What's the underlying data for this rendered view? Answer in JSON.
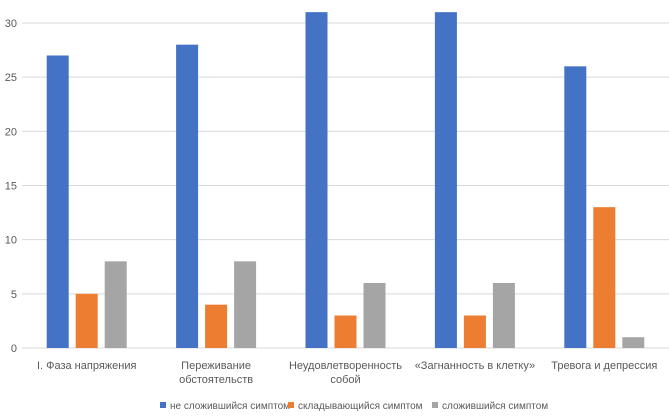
{
  "chart_data": {
    "type": "bar",
    "title": "",
    "xlabel": "",
    "ylabel": "",
    "ylim": [
      0,
      30
    ],
    "yticks": [
      0,
      5,
      10,
      15,
      20,
      25,
      30
    ],
    "grid": true,
    "legend_position": "bottom",
    "categories": [
      [
        "I. Фаза напряжения"
      ],
      [
        "Переживание",
        "обстоятельств"
      ],
      [
        "Неудовлетворенность",
        "собой"
      ],
      [
        "«Загнанность в клетку»"
      ],
      [
        "Тревога и депрессия"
      ]
    ],
    "series": [
      {
        "name": "не сложившийся симптом",
        "color": "#4472c4",
        "values": [
          27,
          28,
          31,
          31,
          26
        ]
      },
      {
        "name": "складывающийся симптом",
        "color": "#ed7d31",
        "values": [
          5,
          4,
          3,
          3,
          13
        ]
      },
      {
        "name": "сложившийся симптом",
        "color": "#a5a5a5",
        "values": [
          8,
          8,
          6,
          6,
          1
        ]
      }
    ]
  }
}
